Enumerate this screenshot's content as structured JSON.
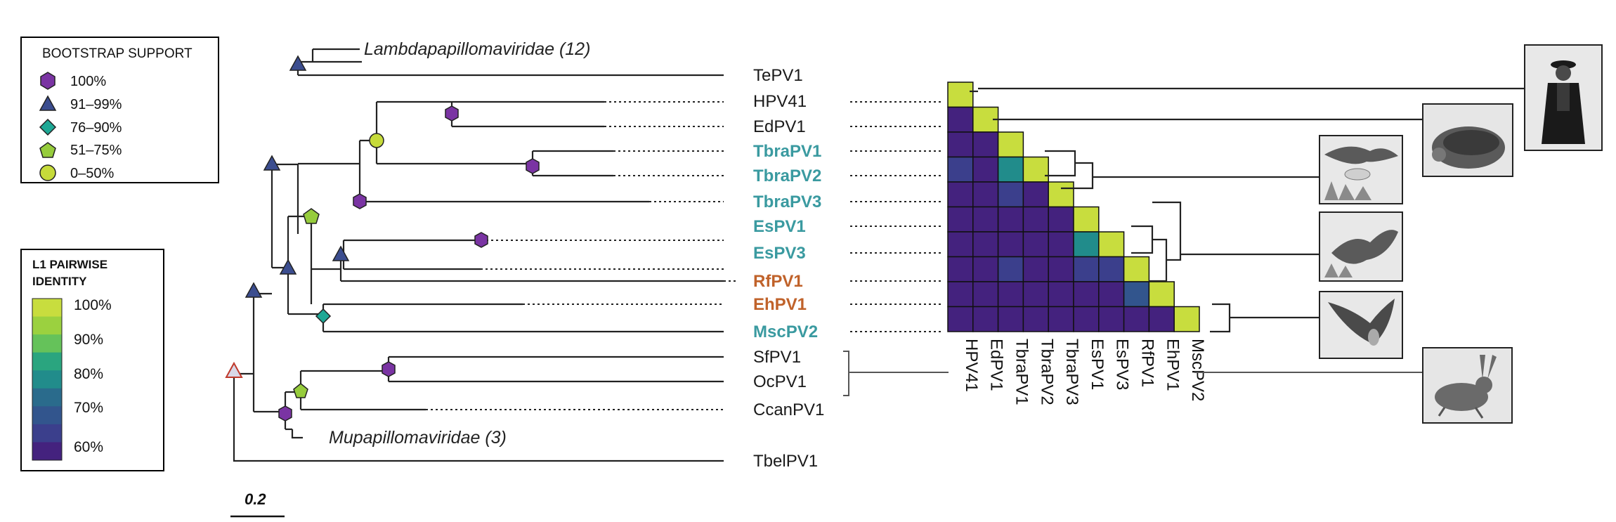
{
  "legend_bootstrap": {
    "title": "BOOTSTRAP SUPPORT",
    "items": [
      {
        "shape": "hexagon",
        "color": "#7a34a3",
        "label": "100%"
      },
      {
        "shape": "triangle",
        "color": "#3b4d8f",
        "label": "91–99%"
      },
      {
        "shape": "diamond",
        "color": "#1ea895",
        "label": "76–90%"
      },
      {
        "shape": "pentagon",
        "color": "#96cc3c",
        "label": "51–75%"
      },
      {
        "shape": "circle",
        "color": "#c6db3a",
        "label": "0–50%"
      }
    ]
  },
  "legend_identity": {
    "title_lines": [
      "L1 PAIRWISE",
      "IDENTITY"
    ],
    "ticks": [
      "100%",
      "90%",
      "80%",
      "70%",
      "60%"
    ],
    "colors": [
      "#c8dd3e",
      "#9bd13f",
      "#65c25a",
      "#2aa57f",
      "#218c8b",
      "#2a6b8c",
      "#32558d",
      "#3b3f8c",
      "#44227e"
    ]
  },
  "tree": {
    "clade_labels": [
      "Lambdapapillomaviridae (12)",
      "Mupapillomaviridae (3)"
    ],
    "taxa": [
      {
        "name": "TePV1",
        "color": "#1a1a1a"
      },
      {
        "name": "HPV41",
        "color": "#1a1a1a"
      },
      {
        "name": "EdPV1",
        "color": "#1a1a1a"
      },
      {
        "name": "TbraPV1",
        "color": "#3a9aa0"
      },
      {
        "name": "TbraPV2",
        "color": "#3a9aa0"
      },
      {
        "name": "TbraPV3",
        "color": "#3a9aa0"
      },
      {
        "name": "EsPV1",
        "color": "#3a9aa0"
      },
      {
        "name": "EsPV3",
        "color": "#3a9aa0"
      },
      {
        "name": "RfPV1",
        "color": "#c0622a"
      },
      {
        "name": "EhPV1",
        "color": "#c0622a"
      },
      {
        "name": "MscPV2",
        "color": "#3a9aa0"
      },
      {
        "name": "SfPV1",
        "color": "#1a1a1a"
      },
      {
        "name": "OcPV1",
        "color": "#1a1a1a"
      },
      {
        "name": "CcanPV1",
        "color": "#1a1a1a"
      },
      {
        "name": "TbelPV1",
        "color": "#1a1a1a"
      }
    ],
    "scale_label": "0.2"
  },
  "matrix": {
    "labels": [
      "HPV41",
      "EdPV1",
      "TbraPV1",
      "TbraPV2",
      "TbraPV3",
      "EsPV1",
      "EsPV3",
      "RfPV1",
      "EhPV1",
      "MscPV2"
    ],
    "lower_triangle_identity_level": [
      [
        9
      ],
      [
        1,
        9
      ],
      [
        1,
        1,
        9
      ],
      [
        2,
        1,
        5,
        9
      ],
      [
        1,
        1,
        2,
        1,
        9
      ],
      [
        1,
        1,
        1,
        1,
        1,
        9
      ],
      [
        1,
        1,
        1,
        1,
        1,
        5,
        9
      ],
      [
        1,
        1,
        2,
        1,
        1,
        2,
        2,
        9
      ],
      [
        1,
        1,
        1,
        1,
        1,
        1,
        1,
        3,
        9
      ],
      [
        1,
        1,
        1,
        1,
        1,
        1,
        1,
        1,
        1,
        9
      ]
    ]
  },
  "host_images": [
    {
      "name": "human-photo",
      "description": "human"
    },
    {
      "name": "hedgehog-photo",
      "description": "hedgehog"
    },
    {
      "name": "molossid-bat-photo",
      "description": "free-tailed bat"
    },
    {
      "name": "serotine-bat-photo",
      "description": "bat"
    },
    {
      "name": "long-eared-bat-photo",
      "description": "bat"
    },
    {
      "name": "hare-photo",
      "description": "hare"
    }
  ]
}
